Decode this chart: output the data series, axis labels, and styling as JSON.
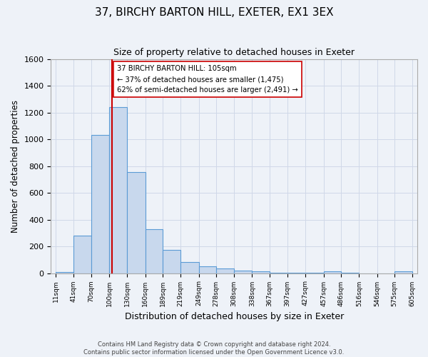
{
  "title": "37, BIRCHY BARTON HILL, EXETER, EX1 3EX",
  "subtitle": "Size of property relative to detached houses in Exeter",
  "xlabel": "Distribution of detached houses by size in Exeter",
  "ylabel": "Number of detached properties",
  "bar_values": [
    10,
    280,
    1035,
    1245,
    755,
    330,
    175,
    85,
    50,
    35,
    20,
    15,
    5,
    5,
    5,
    15,
    5,
    0,
    0,
    15
  ],
  "bin_labels": [
    "11sqm",
    "41sqm",
    "70sqm",
    "100sqm",
    "130sqm",
    "160sqm",
    "189sqm",
    "219sqm",
    "249sqm",
    "278sqm",
    "308sqm",
    "338sqm",
    "367sqm",
    "397sqm",
    "427sqm",
    "457sqm",
    "486sqm",
    "516sqm",
    "546sqm",
    "575sqm",
    "605sqm"
  ],
  "bin_edges": [
    11,
    41,
    70,
    100,
    130,
    160,
    189,
    219,
    249,
    278,
    308,
    338,
    367,
    397,
    427,
    457,
    486,
    516,
    546,
    575,
    605
  ],
  "bar_color": "#c8d8ed",
  "bar_edge_color": "#5b9bd5",
  "vline_x": 105,
  "vline_color": "#cc0000",
  "annotation_text": "37 BIRCHY BARTON HILL: 105sqm\n← 37% of detached houses are smaller (1,475)\n62% of semi-detached houses are larger (2,491) →",
  "annotation_box_color": "#ffffff",
  "annotation_box_edge": "#cc0000",
  "ylim": [
    0,
    1600
  ],
  "yticks": [
    0,
    200,
    400,
    600,
    800,
    1000,
    1200,
    1400,
    1600
  ],
  "grid_color": "#d0d8e8",
  "footer_line1": "Contains HM Land Registry data © Crown copyright and database right 2024.",
  "footer_line2": "Contains public sector information licensed under the Open Government Licence v3.0.",
  "bg_color": "#eef2f8"
}
